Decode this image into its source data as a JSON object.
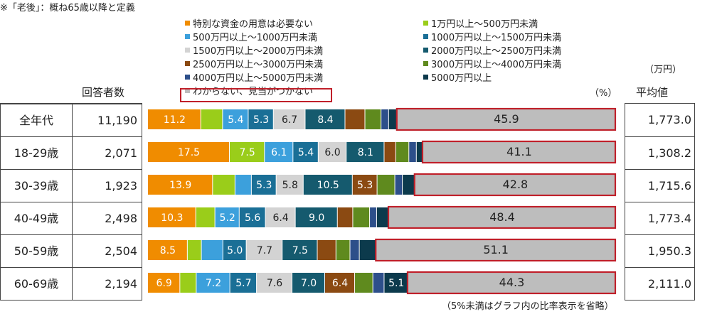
{
  "note_top": "※「老後」：概ね65歳以降と定義",
  "headers": {
    "respondents": "回答者数",
    "average": "平均値",
    "unit_man_yen": "（万円）",
    "unit_percent": "（%）"
  },
  "footnote": "（5%未満はグラフ内の比率表示を省略）",
  "colors": [
    "#f08c00",
    "#9acd1a",
    "#3ca0dc",
    "#1a6f96",
    "#d3d3d3",
    "#155a6e",
    "#8b4a12",
    "#5f8a1e",
    "#2d4f8a",
    "#0c3a4c",
    "#bdbdbd"
  ],
  "highlight_color": "#c0202a",
  "chart_data": {
    "type": "bar",
    "orientation": "horizontal",
    "stacked": true,
    "xlim": [
      0,
      100
    ],
    "categories": [
      "全年代",
      "18-29歳",
      "30-39歳",
      "40-49歳",
      "50-59歳",
      "60-69歳"
    ],
    "respondents": [
      "11,190",
      "2,071",
      "1,923",
      "2,498",
      "2,504",
      "2,194"
    ],
    "averages": [
      "1,773.0",
      "1,308.2",
      "1,715.6",
      "1,773.4",
      "1,950.3",
      "2,111.0"
    ],
    "series": [
      {
        "name": "特別な資金の用意は必要ない",
        "values": [
          11.2,
          17.5,
          13.9,
          10.3,
          8.5,
          6.9
        ]
      },
      {
        "name": "1万円以上～500万円未満",
        "values": [
          4.6,
          7.5,
          4.8,
          4.1,
          3.0,
          3.5
        ]
      },
      {
        "name": "500万円以上～1000万円未満",
        "values": [
          5.4,
          6.1,
          3.5,
          5.2,
          4.6,
          7.2
        ]
      },
      {
        "name": "1000万円以上～1500万円未満",
        "values": [
          5.3,
          5.4,
          5.3,
          5.6,
          5.0,
          5.7
        ]
      },
      {
        "name": "1500万円以上～2000万円未満",
        "values": [
          6.7,
          6.0,
          5.8,
          6.4,
          7.7,
          7.6
        ]
      },
      {
        "name": "2000万円以上～2500万円未満",
        "values": [
          8.4,
          8.1,
          10.5,
          9.0,
          7.5,
          7.0
        ]
      },
      {
        "name": "2500万円以上～3000万円未満",
        "values": [
          4.2,
          2.5,
          5.3,
          3.3,
          4.0,
          6.4
        ]
      },
      {
        "name": "3000万円以上～4000万円未満",
        "values": [
          3.4,
          2.8,
          3.8,
          3.6,
          3.0,
          3.9
        ]
      },
      {
        "name": "4000万円以上～5000万円未満",
        "values": [
          1.6,
          1.6,
          1.6,
          1.5,
          2.0,
          2.4
        ]
      },
      {
        "name": "5000万円以上",
        "values": [
          1.8,
          1.4,
          2.7,
          2.6,
          3.6,
          5.1
        ]
      },
      {
        "name": "わからない、見当がつかない",
        "values": [
          45.9,
          41.1,
          42.8,
          48.4,
          51.1,
          44.3
        ]
      }
    ],
    "label_threshold": 5
  }
}
